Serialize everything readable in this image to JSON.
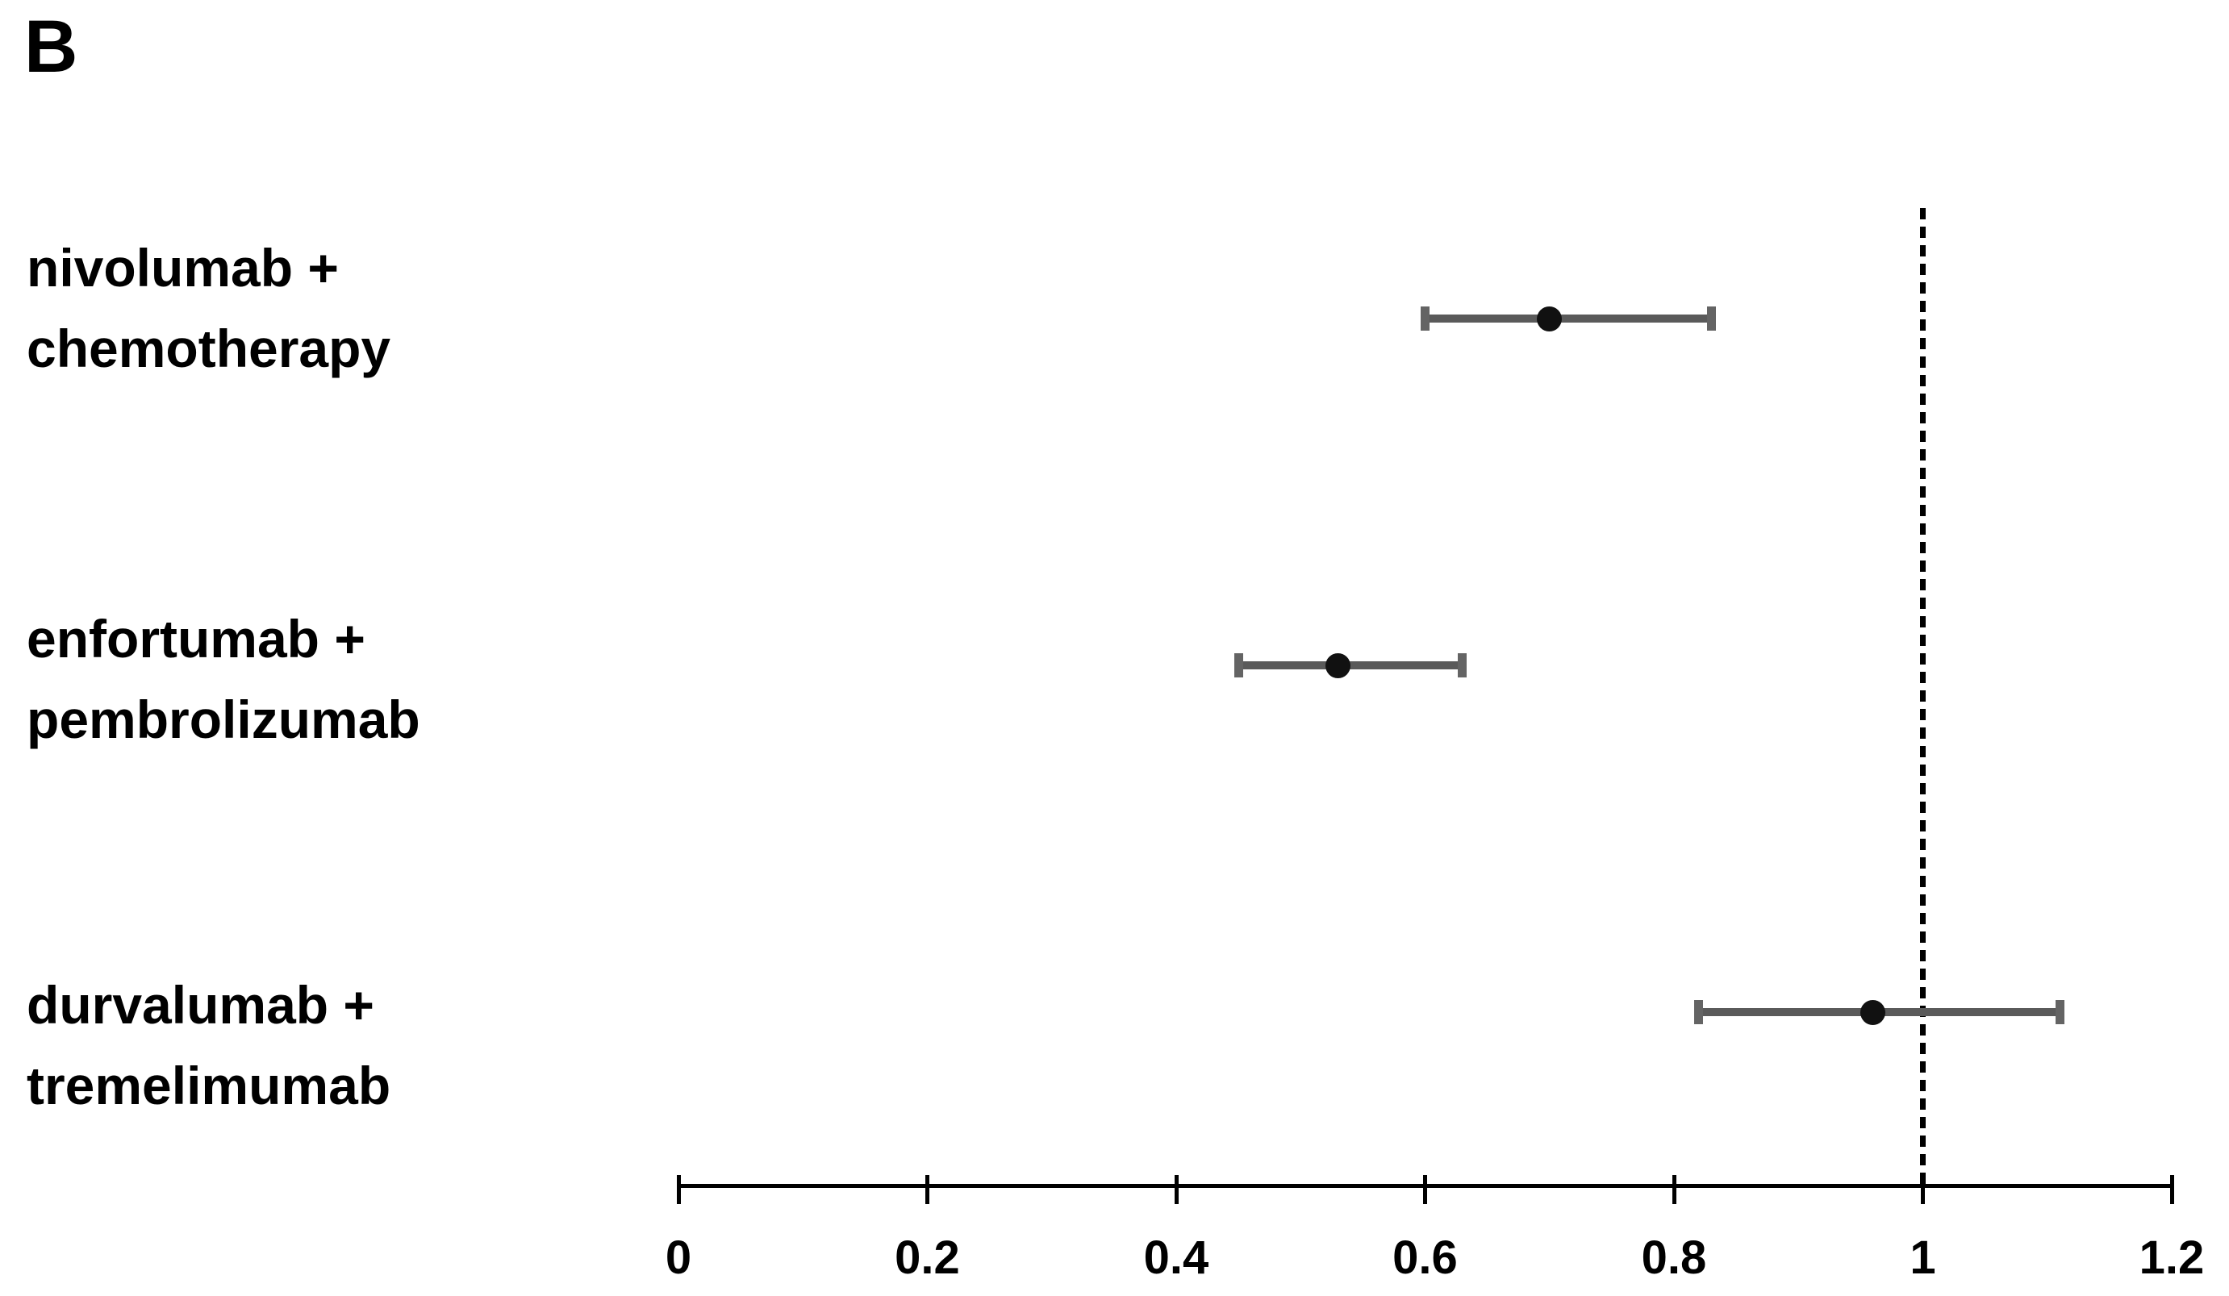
{
  "panel_label": "B",
  "chart_data": {
    "type": "scatter",
    "subtype": "forest-plot",
    "title": "",
    "xlabel": "",
    "ylabel": "",
    "xlim": [
      0,
      1.2
    ],
    "x_ticks": [
      0,
      0.2,
      0.4,
      0.6,
      0.8,
      1,
      1.2
    ],
    "x_tick_labels": [
      "0",
      "0.2",
      "0.4",
      "0.6",
      "0.8",
      "1",
      "1.2"
    ],
    "reference_line_x": 1,
    "reference_line_style": "dashed",
    "grid": false,
    "legend": false,
    "series": [
      {
        "label_line1": "nivolumab +",
        "label_line2": "chemotherapy",
        "point": 0.7,
        "ci_low": 0.6,
        "ci_high": 0.83
      },
      {
        "label_line1": "enfortumab +",
        "label_line2": "pembrolizumab",
        "point": 0.53,
        "ci_low": 0.45,
        "ci_high": 0.63
      },
      {
        "label_line1": "durvalumab +",
        "label_line2": "tremelimumab",
        "point": 0.96,
        "ci_low": 0.82,
        "ci_high": 1.11
      }
    ],
    "colors": {
      "error_bar_line": "#5a5a5a",
      "error_bar_cap": "#646464",
      "point_marker": "#111111",
      "axis": "#000000",
      "reference_line": "#000000",
      "text": "#000000",
      "background": "#ffffff"
    }
  }
}
